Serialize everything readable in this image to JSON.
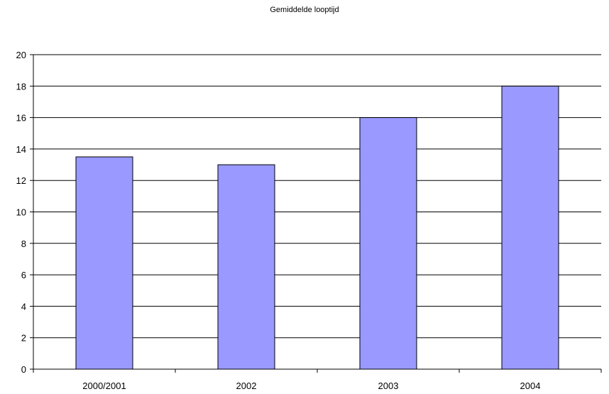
{
  "chart_data": {
    "type": "bar",
    "title": "Gemiddelde looptijd",
    "categories": [
      "2000/2001",
      "2002",
      "2003",
      "2004"
    ],
    "values": [
      13.5,
      13,
      16,
      18
    ],
    "ylim": [
      0,
      20
    ],
    "yticks": [
      0,
      2,
      4,
      6,
      8,
      10,
      12,
      14,
      16,
      18,
      20
    ],
    "grid": true,
    "legend": "none",
    "bar_color": "#9999ff",
    "bar_border_color": "#000000"
  }
}
